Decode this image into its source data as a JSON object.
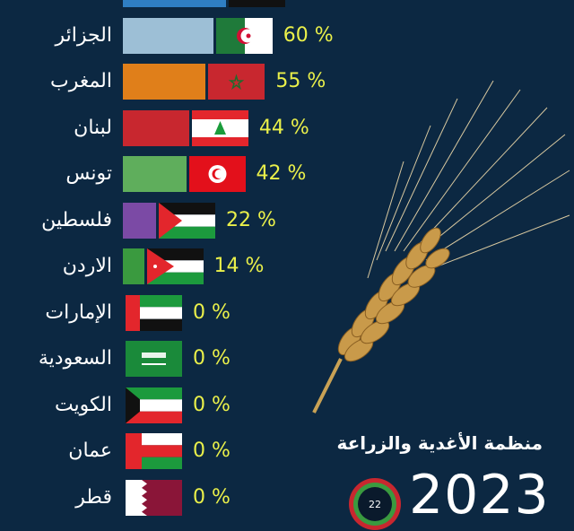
{
  "chart_data": {
    "type": "bar",
    "orientation": "horizontal",
    "unit": "%",
    "categories": [
      "",
      "الجزائر",
      "المغرب",
      "لبنان",
      "تونس",
      "فلسطين",
      "الاردن",
      "الإمارات",
      "السعودية",
      "الكويت",
      "عمان",
      "قطر"
    ],
    "values": [
      null,
      60,
      55,
      44,
      42,
      22,
      14,
      0,
      0,
      0,
      0,
      0
    ],
    "value_labels": [
      "",
      "60 %",
      "55 %",
      "44 %",
      "42 %",
      "22 %",
      "14 %",
      "0 %",
      "0 %",
      "0 %",
      "0 %",
      "0 %"
    ],
    "bar_colors": [
      "#2f7fc4",
      "#9dbfd6",
      "#e07f1a",
      "#c8272f",
      "#5fae5c",
      "#7b4aa5",
      "#3a9a3f",
      "#3a9a3f",
      "#3a9a3f",
      "#3a9a3f",
      "#3a9a3f",
      "#3a9a3f"
    ],
    "flags": [
      "black-flag",
      "algeria",
      "morocco",
      "lebanon",
      "tunisia",
      "palestine",
      "jordan",
      "uae",
      "saudi-arabia",
      "kuwait",
      "oman",
      "qatar"
    ],
    "value_label_color": "#eaf04a",
    "background": "#0c2842"
  },
  "footer": {
    "organization": "منظمة الأغدية والزراعة",
    "year": "2023",
    "logo_text": "22"
  }
}
